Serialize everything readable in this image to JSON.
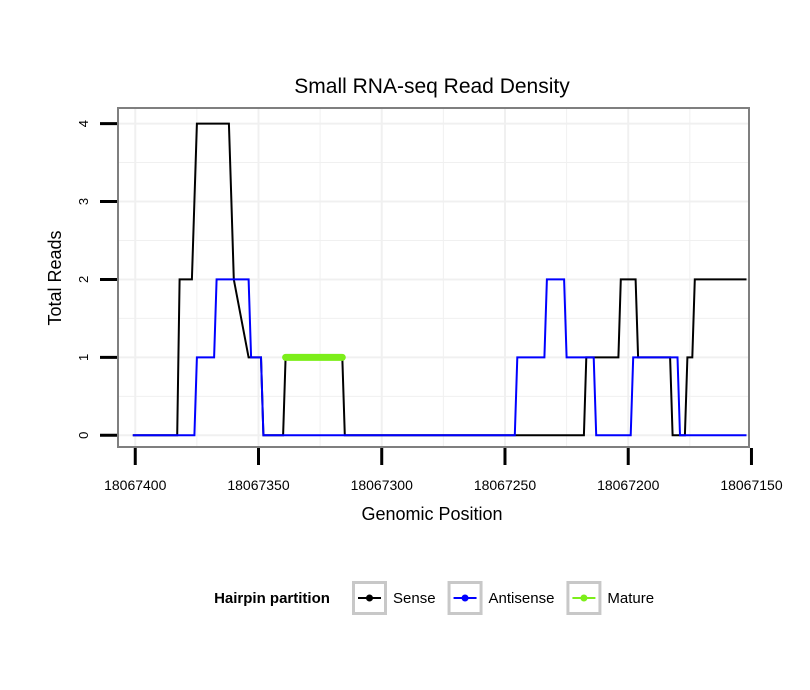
{
  "chart_data": {
    "type": "line",
    "title": "Small RNA-seq Read Density",
    "xlabel": "Genomic Position",
    "ylabel": "Total Reads",
    "xlim": [
      18067407,
      18067151
    ],
    "ylim": [
      -0.15,
      4.2
    ],
    "x_ticks": [
      18067400,
      18067350,
      18067300,
      18067250,
      18067200,
      18067150
    ],
    "x_tick_labels": [
      "18067400",
      "18067350",
      "18067300",
      "18067250",
      "18067200",
      "18067150"
    ],
    "y_ticks": [
      0,
      1,
      2,
      3,
      4
    ],
    "y_tick_labels": [
      "0",
      "1",
      "2",
      "3",
      "4"
    ],
    "legend": {
      "title": "Hairpin partition",
      "position": "bottom",
      "entries": [
        "Sense",
        "Antisense",
        "Mature"
      ]
    },
    "series": [
      {
        "name": "Sense",
        "color": "#000000",
        "x": [
          18067401,
          18067383,
          18067382,
          18067377,
          18067376,
          18067375,
          18067362,
          18067361,
          18067360,
          18067354,
          18067349,
          18067348,
          18067340,
          18067339,
          18067316,
          18067315,
          18067218,
          18067217,
          18067210,
          18067204,
          18067203,
          18067197,
          18067196,
          18067183,
          18067182,
          18067177,
          18067176,
          18067174,
          18067173,
          18067152
        ],
        "y": [
          0,
          0,
          2,
          2,
          3,
          4,
          4,
          3,
          2,
          1,
          1,
          0,
          0,
          1,
          1,
          0,
          0,
          1,
          1,
          1,
          2,
          2,
          1,
          1,
          0,
          0,
          1,
          1,
          2,
          2
        ]
      },
      {
        "name": "Antisense",
        "color": "#0000ff",
        "x": [
          18067401,
          18067376,
          18067375,
          18067368,
          18067367,
          18067354,
          18067353,
          18067349,
          18067348,
          18067246,
          18067245,
          18067234,
          18067233,
          18067226,
          18067225,
          18067214,
          18067213,
          18067199,
          18067198,
          18067180,
          18067179,
          18067152
        ],
        "y": [
          0,
          0,
          1,
          1,
          2,
          2,
          1,
          1,
          0,
          0,
          1,
          1,
          2,
          2,
          1,
          1,
          0,
          0,
          1,
          1,
          0,
          0
        ]
      },
      {
        "name": "Mature",
        "color": "#7cee1a",
        "x": [
          18067339,
          18067316
        ],
        "y": [
          1,
          1
        ]
      }
    ]
  }
}
